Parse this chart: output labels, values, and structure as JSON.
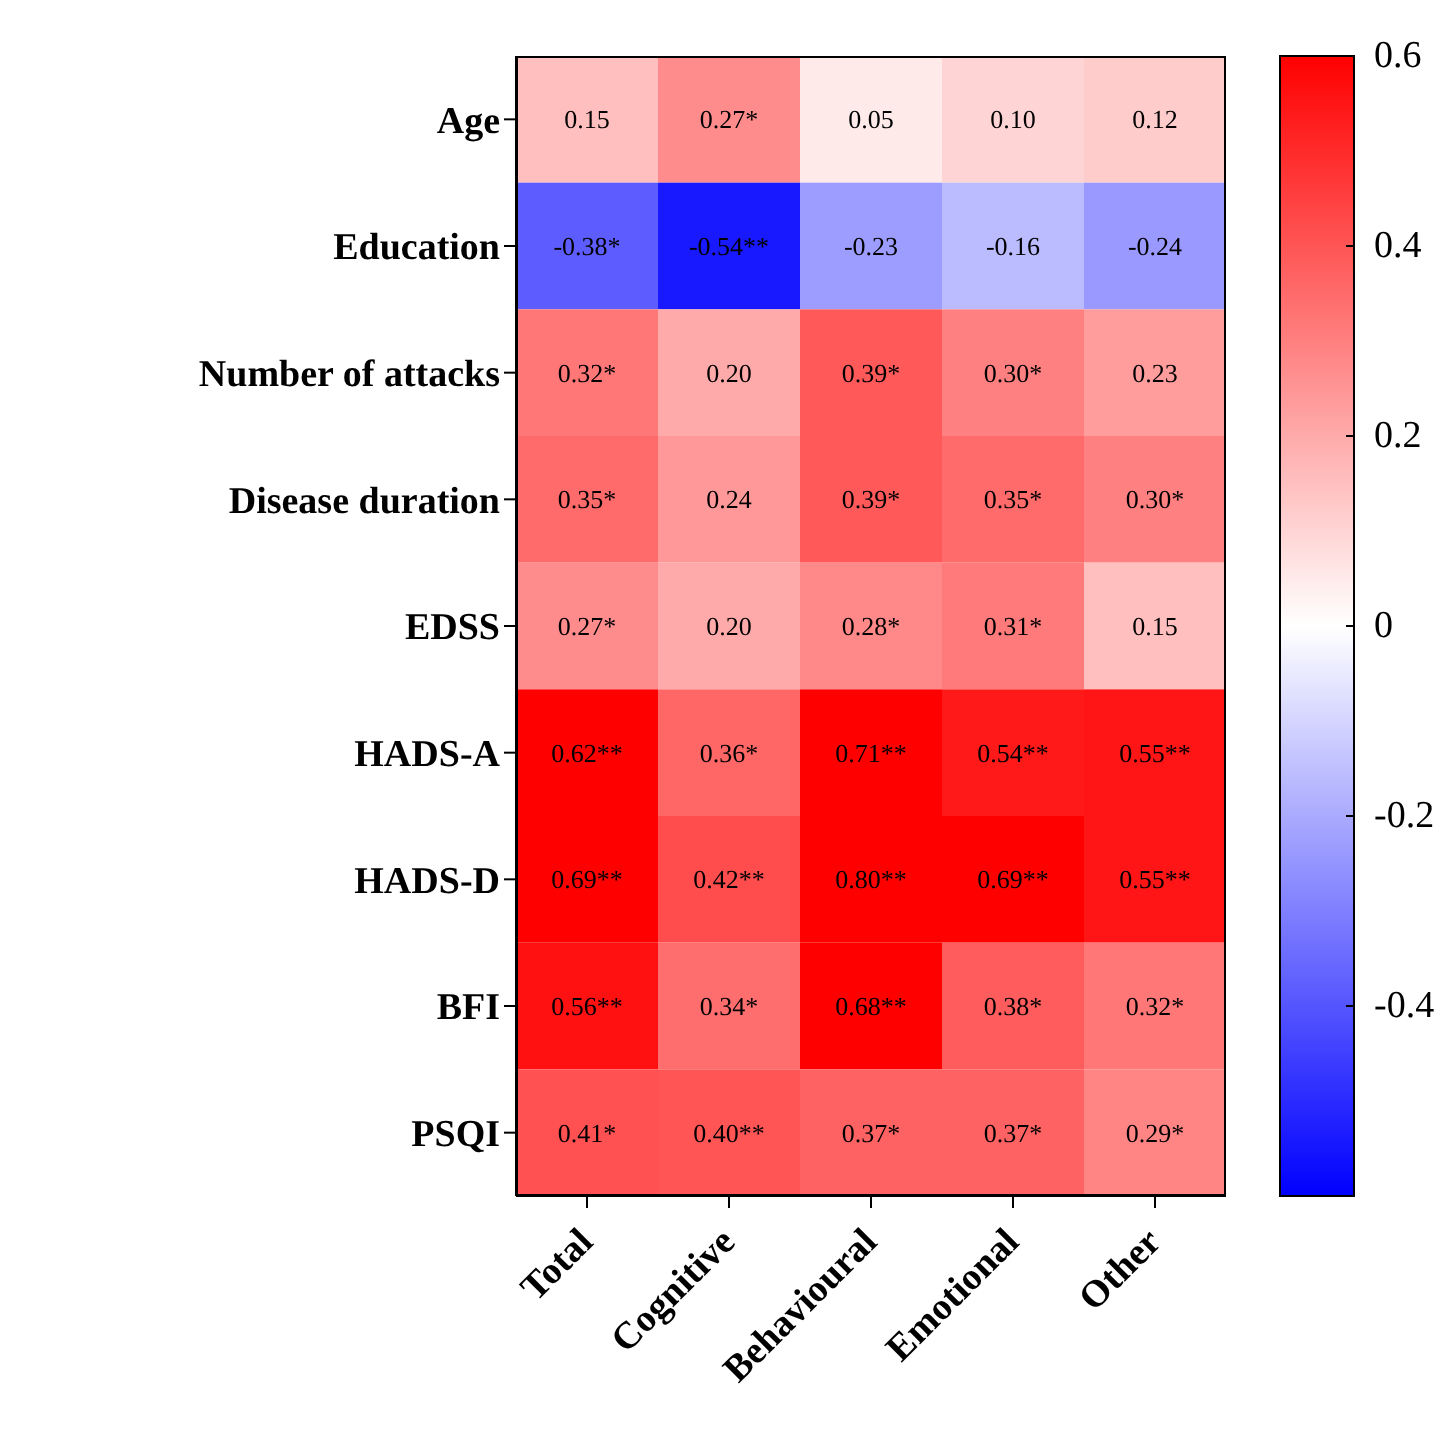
{
  "chart_data": {
    "type": "heatmap",
    "categories": [
      "Total",
      "Cognitive",
      "Behavioural",
      "Emotional",
      "Other"
    ],
    "y_categories": [
      "Age",
      "Education",
      "Number of attacks",
      "Disease duration",
      "EDSS",
      "HADS-A",
      "HADS-D",
      "BFI",
      "PSQI"
    ],
    "cells": [
      [
        0.15,
        0.27,
        0.05,
        0.1,
        0.12
      ],
      [
        -0.38,
        -0.54,
        -0.23,
        -0.16,
        -0.24
      ],
      [
        0.32,
        0.2,
        0.39,
        0.3,
        0.23
      ],
      [
        0.35,
        0.24,
        0.39,
        0.35,
        0.3
      ],
      [
        0.27,
        0.2,
        0.28,
        0.31,
        0.15
      ],
      [
        0.62,
        0.36,
        0.71,
        0.54,
        0.55
      ],
      [
        0.69,
        0.42,
        0.8,
        0.69,
        0.55
      ],
      [
        0.56,
        0.34,
        0.68,
        0.38,
        0.32
      ],
      [
        0.41,
        0.4,
        0.37,
        0.37,
        0.29
      ]
    ],
    "cell_labels": [
      [
        "0.15",
        "0.27*",
        "0.05",
        "0.10",
        "0.12"
      ],
      [
        "-0.38*",
        "-0.54**",
        "-0.23",
        "-0.16",
        "-0.24"
      ],
      [
        "0.32*",
        "0.20",
        "0.39*",
        "0.30*",
        "0.23"
      ],
      [
        "0.35*",
        "0.24",
        "0.39*",
        "0.35*",
        "0.30*"
      ],
      [
        "0.27*",
        "0.20",
        "0.28*",
        "0.31*",
        "0.15"
      ],
      [
        "0.62**",
        "0.36*",
        "0.71**",
        "0.54**",
        "0.55**"
      ],
      [
        "0.69**",
        "0.42**",
        "0.80**",
        "0.69**",
        "0.55**"
      ],
      [
        "0.56**",
        "0.34*",
        "0.68**",
        "0.38*",
        "0.32*"
      ],
      [
        "0.41*",
        "0.40**",
        "0.37*",
        "0.37*",
        "0.29*"
      ]
    ],
    "clim": [
      -0.6,
      0.6
    ],
    "cticks": [
      0.6,
      0.4,
      0.2,
      0,
      -0.2,
      -0.4
    ]
  }
}
